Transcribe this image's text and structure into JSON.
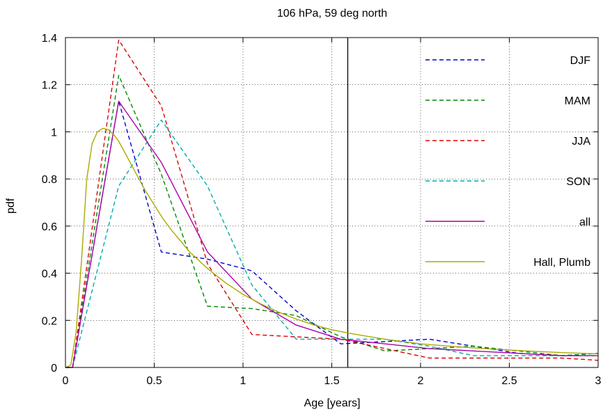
{
  "chart_data": {
    "type": "line",
    "title": "106 hPa, 59 deg north",
    "xlabel": "Age [years]",
    "ylabel": "pdf",
    "xlim": [
      0,
      3
    ],
    "ylim": [
      0,
      1.4
    ],
    "xticks": [
      0,
      0.5,
      1,
      1.5,
      2,
      2.5,
      3
    ],
    "xtick_labels": [
      "0",
      "0.5",
      "1",
      "1.5",
      "2",
      "2.5",
      "3"
    ],
    "yticks": [
      0,
      0.2,
      0.4,
      0.6,
      0.8,
      1.0,
      1.2,
      1.4
    ],
    "ytick_labels": [
      "0",
      "0.2",
      "0.4",
      "0.6",
      "0.8",
      "1",
      "1.2",
      "1.4"
    ],
    "grid": true,
    "legend_position": "top-right",
    "vertical_line_x": 1.59,
    "series": [
      {
        "name": "DJF",
        "color": "#0000cc",
        "dash": true,
        "x": [
          0,
          0.04,
          0.3,
          0.54,
          0.8,
          1.05,
          1.3,
          1.55,
          1.8,
          2.05,
          2.3,
          2.55,
          2.8,
          3.0
        ],
        "y": [
          0,
          0,
          1.13,
          0.49,
          0.46,
          0.41,
          0.24,
          0.1,
          0.11,
          0.12,
          0.09,
          0.06,
          0.05,
          0.06
        ]
      },
      {
        "name": "MAM",
        "color": "#008800",
        "dash": true,
        "x": [
          0,
          0.04,
          0.3,
          0.54,
          0.8,
          1.05,
          1.3,
          1.55,
          1.8,
          2.05,
          2.3,
          2.55,
          2.8,
          3.0
        ],
        "y": [
          0,
          0,
          1.24,
          0.82,
          0.26,
          0.25,
          0.22,
          0.13,
          0.07,
          0.08,
          0.09,
          0.07,
          0.05,
          0.06
        ]
      },
      {
        "name": "JJA",
        "color": "#dd0000",
        "dash": true,
        "x": [
          0,
          0.04,
          0.3,
          0.54,
          0.8,
          1.05,
          1.3,
          1.55,
          1.8,
          2.05,
          2.3,
          2.55,
          2.8,
          3.0
        ],
        "y": [
          0,
          0,
          1.39,
          1.11,
          0.44,
          0.14,
          0.13,
          0.12,
          0.08,
          0.04,
          0.04,
          0.04,
          0.04,
          0.03
        ]
      },
      {
        "name": "SON",
        "color": "#00aaaa",
        "dash": true,
        "x": [
          0,
          0.04,
          0.3,
          0.54,
          0.8,
          1.05,
          1.3,
          1.55,
          1.8,
          2.05,
          2.3,
          2.55,
          2.8,
          3.0
        ],
        "y": [
          0,
          0,
          0.77,
          1.05,
          0.77,
          0.35,
          0.12,
          0.12,
          0.12,
          0.09,
          0.05,
          0.05,
          0.05,
          0.05
        ]
      },
      {
        "name": "all",
        "color": "#aa00aa",
        "dash": false,
        "x": [
          0,
          0.04,
          0.3,
          0.54,
          0.8,
          1.05,
          1.3,
          1.55,
          1.8,
          2.05,
          2.3,
          2.55,
          2.8,
          3.0
        ],
        "y": [
          0,
          0,
          1.13,
          0.87,
          0.49,
          0.29,
          0.18,
          0.12,
          0.1,
          0.08,
          0.07,
          0.06,
          0.05,
          0.05
        ]
      },
      {
        "name": "Hall, Plumb",
        "color": "#aaaa00",
        "dash": false,
        "x": [
          0,
          0.03,
          0.06,
          0.09,
          0.12,
          0.15,
          0.18,
          0.21,
          0.24,
          0.27,
          0.3,
          0.35,
          0.4,
          0.45,
          0.5,
          0.55,
          0.6,
          0.7,
          0.8,
          0.9,
          1.0,
          1.1,
          1.2,
          1.3,
          1.4,
          1.5,
          1.6,
          1.8,
          2.0,
          2.2,
          2.4,
          2.6,
          2.8,
          3.0
        ],
        "y": [
          0,
          0.01,
          0.15,
          0.45,
          0.8,
          0.95,
          1.0,
          1.015,
          1.01,
          0.99,
          0.96,
          0.89,
          0.82,
          0.75,
          0.69,
          0.63,
          0.58,
          0.49,
          0.42,
          0.36,
          0.31,
          0.27,
          0.235,
          0.205,
          0.18,
          0.16,
          0.145,
          0.12,
          0.1,
          0.088,
          0.078,
          0.07,
          0.063,
          0.058
        ]
      }
    ]
  }
}
